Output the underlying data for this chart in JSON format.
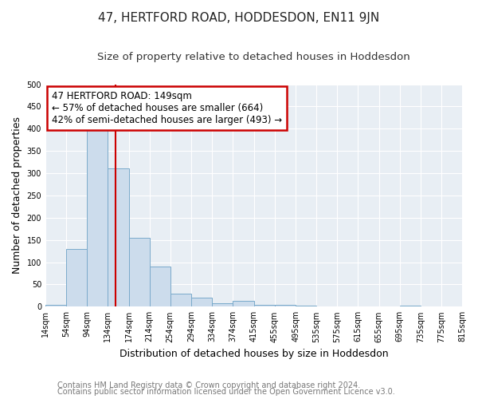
{
  "title": "47, HERTFORD ROAD, HODDESDON, EN11 9JN",
  "subtitle": "Size of property relative to detached houses in Hoddesdon",
  "xlabel": "Distribution of detached houses by size in Hoddesdon",
  "ylabel": "Number of detached properties",
  "bin_edges": [
    14,
    54,
    94,
    134,
    174,
    214,
    254,
    294,
    334,
    374,
    415,
    455,
    495,
    535,
    575,
    615,
    655,
    695,
    735,
    775,
    815
  ],
  "bar_heights": [
    5,
    130,
    405,
    310,
    155,
    90,
    30,
    20,
    8,
    13,
    5,
    5,
    3,
    0,
    0,
    0,
    0,
    3,
    0,
    0
  ],
  "bar_color": "#ccdcec",
  "bar_edgecolor": "#7aaacb",
  "tick_labels": [
    "14sqm",
    "54sqm",
    "94sqm",
    "134sqm",
    "174sqm",
    "214sqm",
    "254sqm",
    "294sqm",
    "334sqm",
    "374sqm",
    "415sqm",
    "455sqm",
    "495sqm",
    "535sqm",
    "575sqm",
    "615sqm",
    "655sqm",
    "695sqm",
    "735sqm",
    "775sqm",
    "815sqm"
  ],
  "vline_x": 149,
  "vline_color": "#cc0000",
  "ylim": [
    0,
    500
  ],
  "yticks": [
    0,
    50,
    100,
    150,
    200,
    250,
    300,
    350,
    400,
    450,
    500
  ],
  "annotation_title": "47 HERTFORD ROAD: 149sqm",
  "annotation_line1": "← 57% of detached houses are smaller (664)",
  "annotation_line2": "42% of semi-detached houses are larger (493) →",
  "annotation_box_color": "#cc0000",
  "footer1": "Contains HM Land Registry data © Crown copyright and database right 2024.",
  "footer2": "Contains public sector information licensed under the Open Government Licence v3.0.",
  "plot_bg_color": "#e8eef4",
  "figure_bg_color": "#ffffff",
  "grid_color": "#ffffff",
  "title_fontsize": 11,
  "subtitle_fontsize": 9.5,
  "axis_label_fontsize": 9,
  "tick_fontsize": 7,
  "annotation_fontsize": 8.5,
  "footer_fontsize": 7
}
